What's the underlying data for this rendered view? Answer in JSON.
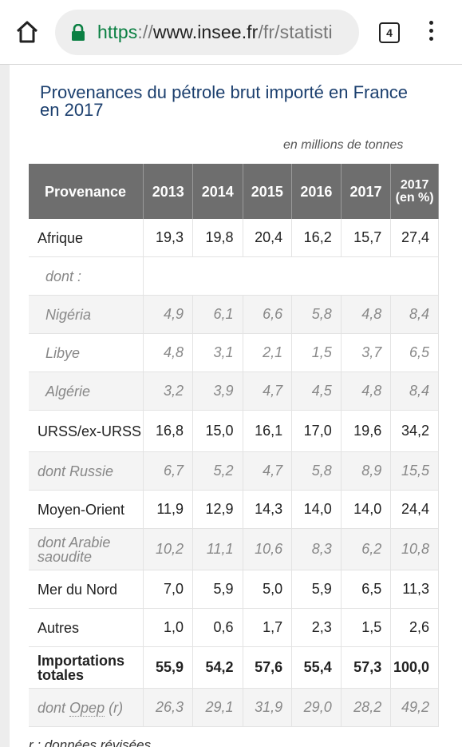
{
  "browser": {
    "url_scheme": "https",
    "url_sep": "://",
    "url_host": "www.insee.fr",
    "url_path": "/fr/statisti",
    "tab_count": "4"
  },
  "page": {
    "title": "Provenances du pétrole brut importé en France en 2017",
    "unit_note": "en millions de tonnes",
    "footnote": "r : données révisées"
  },
  "table": {
    "headers": [
      "Provenance",
      "2013",
      "2014",
      "2015",
      "2016",
      "2017",
      "2017 (en %)"
    ],
    "rows": [
      {
        "label": "Afrique",
        "values": [
          "19,3",
          "19,8",
          "20,4",
          "16,2",
          "15,7",
          "27,4"
        ]
      },
      {
        "label": "dont :",
        "values": []
      },
      {
        "label": "Nigéria",
        "values": [
          "4,9",
          "6,1",
          "6,6",
          "5,8",
          "4,8",
          "8,4"
        ]
      },
      {
        "label": "Libye",
        "values": [
          "4,8",
          "3,1",
          "2,1",
          "1,5",
          "3,7",
          "6,5"
        ]
      },
      {
        "label": "Algérie",
        "values": [
          "3,2",
          "3,9",
          "4,7",
          "4,5",
          "4,8",
          "8,4"
        ]
      },
      {
        "label": "URSS/ex-URSS",
        "values": [
          "16,8",
          "15,0",
          "16,1",
          "17,0",
          "19,6",
          "34,2"
        ]
      },
      {
        "label": "dont Russie",
        "values": [
          "6,7",
          "5,2",
          "4,7",
          "5,8",
          "8,9",
          "15,5"
        ]
      },
      {
        "label": "Moyen-Orient",
        "values": [
          "11,9",
          "12,9",
          "14,3",
          "14,0",
          "14,0",
          "24,4"
        ]
      },
      {
        "label": "dont Arabie saoudite",
        "values": [
          "10,2",
          "11,1",
          "10,6",
          "8,3",
          "6,2",
          "10,8"
        ]
      },
      {
        "label": "Mer du Nord",
        "values": [
          "7,0",
          "5,9",
          "5,0",
          "5,9",
          "6,5",
          "11,3"
        ]
      },
      {
        "label": "Autres",
        "values": [
          "1,0",
          "0,6",
          "1,7",
          "2,3",
          "1,5",
          "2,6"
        ]
      },
      {
        "label": "Importations totales",
        "values": [
          "55,9",
          "54,2",
          "57,6",
          "55,4",
          "57,3",
          "100,0"
        ]
      },
      {
        "label_prefix": "dont ",
        "label_abbr": "Opep",
        "label_suffix": " (r)",
        "values": [
          "26,3",
          "29,1",
          "31,9",
          "29,0",
          "28,2",
          "49,2"
        ]
      }
    ]
  },
  "icons": {
    "home": "home-icon",
    "lock": "lock-icon",
    "tabs": "tab-switcher-icon",
    "menu": "more-vert-icon"
  },
  "colors": {
    "header_bg": "#6e6e6e",
    "title": "#1b3f6e",
    "url_scheme": "#0b8043"
  }
}
